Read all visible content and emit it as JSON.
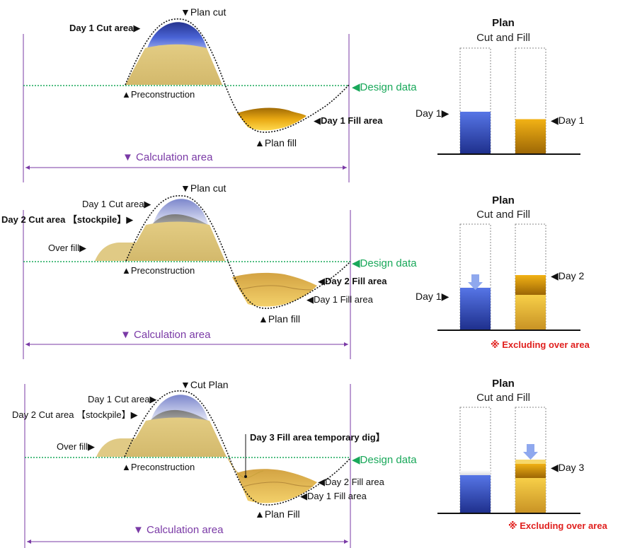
{
  "panels": [
    {
      "labels": {
        "plan_cut": "▼Plan cut",
        "cut_area": "Day 1 Cut area▶",
        "preconstruction": "▲Preconstruction",
        "design_data": "◀Design data",
        "fill_area": "◀Day 1 Fill area",
        "plan_fill": "▲Plan fill",
        "calc_area": "▼ Calculation area"
      },
      "bar": {
        "title": "Plan",
        "subtitle": "Cut and Fill",
        "left_label": "Day 1▶",
        "right_label": "◀Day 1",
        "cut_level": 0.4,
        "fill_level": 0.33
      }
    },
    {
      "labels": {
        "plan_cut": "▼Plan cut",
        "prev_cut": "Day 1 Cut area▶",
        "cut_area": "Day 2 Cut area 【stockpile】▶",
        "over_fill": "Over fill▶",
        "preconstruction": "▲Preconstruction",
        "design_data": "◀Design data",
        "fill_area": "◀Day 2  Fill area",
        "prev_fill": "◀Day 1 Fill area",
        "plan_fill": "▲Plan fill",
        "calc_area": "▼ Calculation area"
      },
      "bar": {
        "title": "Plan",
        "subtitle": "Cut and Fill",
        "left_label": "Day 1▶",
        "right_label": "◀Day 2",
        "cut_level": 0.4,
        "fill_level": 0.52,
        "note": "※ Excluding over area"
      }
    },
    {
      "labels": {
        "plan_cut": "▼Cut Plan",
        "prev_cut": "Day 1 Cut area▶",
        "cut_area": "Day 2 Cut area 【stockpile】▶",
        "over_fill": "Over fill▶",
        "preconstruction": "▲Preconstruction",
        "design_data": "◀Design data",
        "temp_dig": "Day 3 Fill area temporary dig】",
        "fill_area": "◀Day 2  Fill area",
        "prev_fill": "◀Day 1 Fill area",
        "plan_fill": "▲Plan Fill",
        "calc_area": "▼ Calculation area"
      },
      "bar": {
        "title": "Plan",
        "subtitle": "Cut and Fill",
        "right_label": "◀Day 3",
        "cut_level": 0.36,
        "fill_level": 0.47,
        "note": "※ Excluding over area"
      }
    }
  ],
  "colors": {
    "cut_blue": "#3d5bd4",
    "fill_gold": "#e0a012",
    "soil": "#dcc47c",
    "design_line": "#19a85a",
    "calc_purple": "#7a3aa6",
    "note_red": "#e0201e"
  }
}
